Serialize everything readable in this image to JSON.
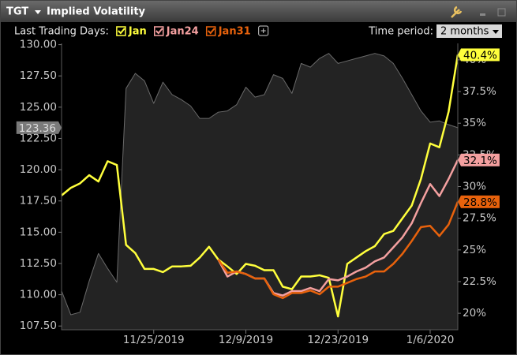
{
  "header": {
    "symbol": "TGT",
    "title": "Implied Volatility"
  },
  "toolbar": {
    "legend_label": "Last Trading Days:",
    "time_period_label": "Time period:",
    "time_period": "2 months"
  },
  "chart_data": {
    "type": "line",
    "categories": [
      null,
      null,
      null,
      null,
      null,
      null,
      null,
      null,
      null,
      null,
      "11/25/2019",
      null,
      null,
      null,
      null,
      null,
      null,
      null,
      null,
      null,
      "12/9/2019",
      null,
      null,
      null,
      null,
      null,
      null,
      null,
      null,
      null,
      "12/23/2019",
      null,
      null,
      null,
      null,
      null,
      null,
      null,
      null,
      null,
      "1/6/2020",
      null,
      null,
      null
    ],
    "ylim": [
      107.2,
      130.1
    ],
    "yticks": [
      {
        "value": 107.5,
        "label": "107.50"
      },
      {
        "value": 110,
        "label": "110.00"
      },
      {
        "value": 112.5,
        "label": "112.50"
      },
      {
        "value": 115,
        "label": "115.00"
      },
      {
        "value": 117.5,
        "label": "117.50"
      },
      {
        "value": 120,
        "label": "120.00"
      },
      {
        "value": 122.5,
        "label": "122.50"
      },
      {
        "value": 125,
        "label": "125.00"
      },
      {
        "value": 127.5,
        "label": "127.50"
      },
      {
        "value": 130,
        "label": "130.00"
      }
    ],
    "y2lim": [
      18.7,
      41.3
    ],
    "y2ticks": [
      {
        "value": 20,
        "label": "20%"
      },
      {
        "value": 22.5,
        "label": "22.5%"
      },
      {
        "value": 25,
        "label": "25%"
      },
      {
        "value": 27.5,
        "label": "27.5%"
      },
      {
        "value": 30,
        "label": "30%"
      },
      {
        "value": 32.5,
        "label": "32.5%"
      },
      {
        "value": 35,
        "label": "35%"
      },
      {
        "value": 37.5,
        "label": "37.5%"
      },
      {
        "value": 40,
        "label": "40%"
      }
    ],
    "series": [
      {
        "color": "#6a6a6a",
        "fill": "#232323",
        "axis": "y",
        "area": true,
        "values": [
          110.3,
          108.4,
          108.6,
          111.1,
          113.3,
          112.1,
          111.0,
          126.5,
          127.7,
          127.1,
          125.3,
          127.0,
          126.0,
          125.6,
          125.1,
          124.1,
          124.1,
          124.6,
          124.7,
          125.2,
          126.6,
          125.8,
          126.0,
          127.6,
          127.3,
          126.1,
          128.5,
          128.2,
          128.9,
          129.3,
          128.5,
          128.7,
          128.9,
          129.1,
          129.3,
          129.1,
          128.5,
          127.3,
          126.0,
          124.7,
          123.8,
          123.9,
          123.6,
          123.36
        ],
        "value_labels": [
          null,
          null,
          null,
          null,
          null,
          null,
          null,
          null,
          null,
          null,
          null,
          null,
          null,
          null,
          null,
          null,
          null,
          null,
          null,
          null,
          null,
          null,
          null,
          null,
          null,
          null,
          null,
          null,
          null,
          null,
          null,
          null,
          null,
          null,
          null,
          null,
          null,
          null,
          null,
          null,
          null,
          null,
          null,
          "123.36"
        ]
      },
      {
        "name": "Jan",
        "color": "#ffff3c",
        "axis": "y2",
        "values": [
          29.3,
          29.9,
          30.25,
          30.9,
          30.4,
          32.0,
          31.7,
          25.4,
          24.75,
          23.5,
          23.5,
          23.25,
          23.7,
          23.7,
          23.75,
          24.4,
          25.25,
          24.25,
          23.7,
          23.1,
          23.9,
          23.75,
          23.4,
          23.4,
          22.1,
          21.9,
          22.9,
          22.9,
          23.0,
          22.8,
          19.75,
          23.9,
          24.4,
          24.9,
          25.3,
          26.25,
          26.5,
          27.5,
          28.5,
          30.6,
          33.4,
          33.1,
          35.9,
          40.4
        ],
        "value_labels": [
          null,
          null,
          null,
          null,
          null,
          null,
          null,
          null,
          null,
          null,
          null,
          null,
          null,
          null,
          null,
          null,
          null,
          null,
          null,
          null,
          null,
          null,
          null,
          null,
          null,
          null,
          null,
          null,
          null,
          null,
          null,
          null,
          null,
          null,
          null,
          null,
          null,
          null,
          null,
          null,
          null,
          null,
          null,
          "40.4%"
        ]
      },
      {
        "name": "Jan24",
        "color": "#f4a0a0",
        "axis": "y2",
        "values": [
          null,
          null,
          null,
          null,
          null,
          null,
          null,
          null,
          null,
          null,
          null,
          null,
          null,
          null,
          null,
          null,
          null,
          24.25,
          22.9,
          23.3,
          23.1,
          22.75,
          22.75,
          21.6,
          21.4,
          21.75,
          21.75,
          22.0,
          21.75,
          22.7,
          22.6,
          22.9,
          23.3,
          23.6,
          24.1,
          24.4,
          25.2,
          26.0,
          27.1,
          28.7,
          30.2,
          29.25,
          30.6,
          32.1
        ],
        "value_labels": [
          null,
          null,
          null,
          null,
          null,
          null,
          null,
          null,
          null,
          null,
          null,
          null,
          null,
          null,
          null,
          null,
          null,
          null,
          null,
          null,
          null,
          null,
          null,
          null,
          null,
          null,
          null,
          null,
          null,
          null,
          null,
          null,
          null,
          null,
          null,
          null,
          null,
          null,
          null,
          null,
          null,
          null,
          null,
          "32.1%"
        ]
      },
      {
        "name": "Jan31",
        "color": "#e8620c",
        "axis": "y2",
        "values": [
          null,
          null,
          null,
          null,
          null,
          null,
          null,
          null,
          null,
          null,
          null,
          null,
          null,
          null,
          null,
          null,
          null,
          24.25,
          23.2,
          23.3,
          23.1,
          22.75,
          22.75,
          21.5,
          21.2,
          21.6,
          21.6,
          21.8,
          21.5,
          22.1,
          22.1,
          22.4,
          22.7,
          22.9,
          23.3,
          23.3,
          23.9,
          24.7,
          25.7,
          26.8,
          26.9,
          26.1,
          27.0,
          28.8
        ],
        "value_labels": [
          null,
          null,
          null,
          null,
          null,
          null,
          null,
          null,
          null,
          null,
          null,
          null,
          null,
          null,
          null,
          null,
          null,
          null,
          null,
          null,
          null,
          null,
          null,
          null,
          null,
          null,
          null,
          null,
          null,
          null,
          null,
          null,
          null,
          null,
          null,
          null,
          null,
          null,
          null,
          null,
          null,
          null,
          null,
          "28.8%"
        ]
      }
    ]
  }
}
